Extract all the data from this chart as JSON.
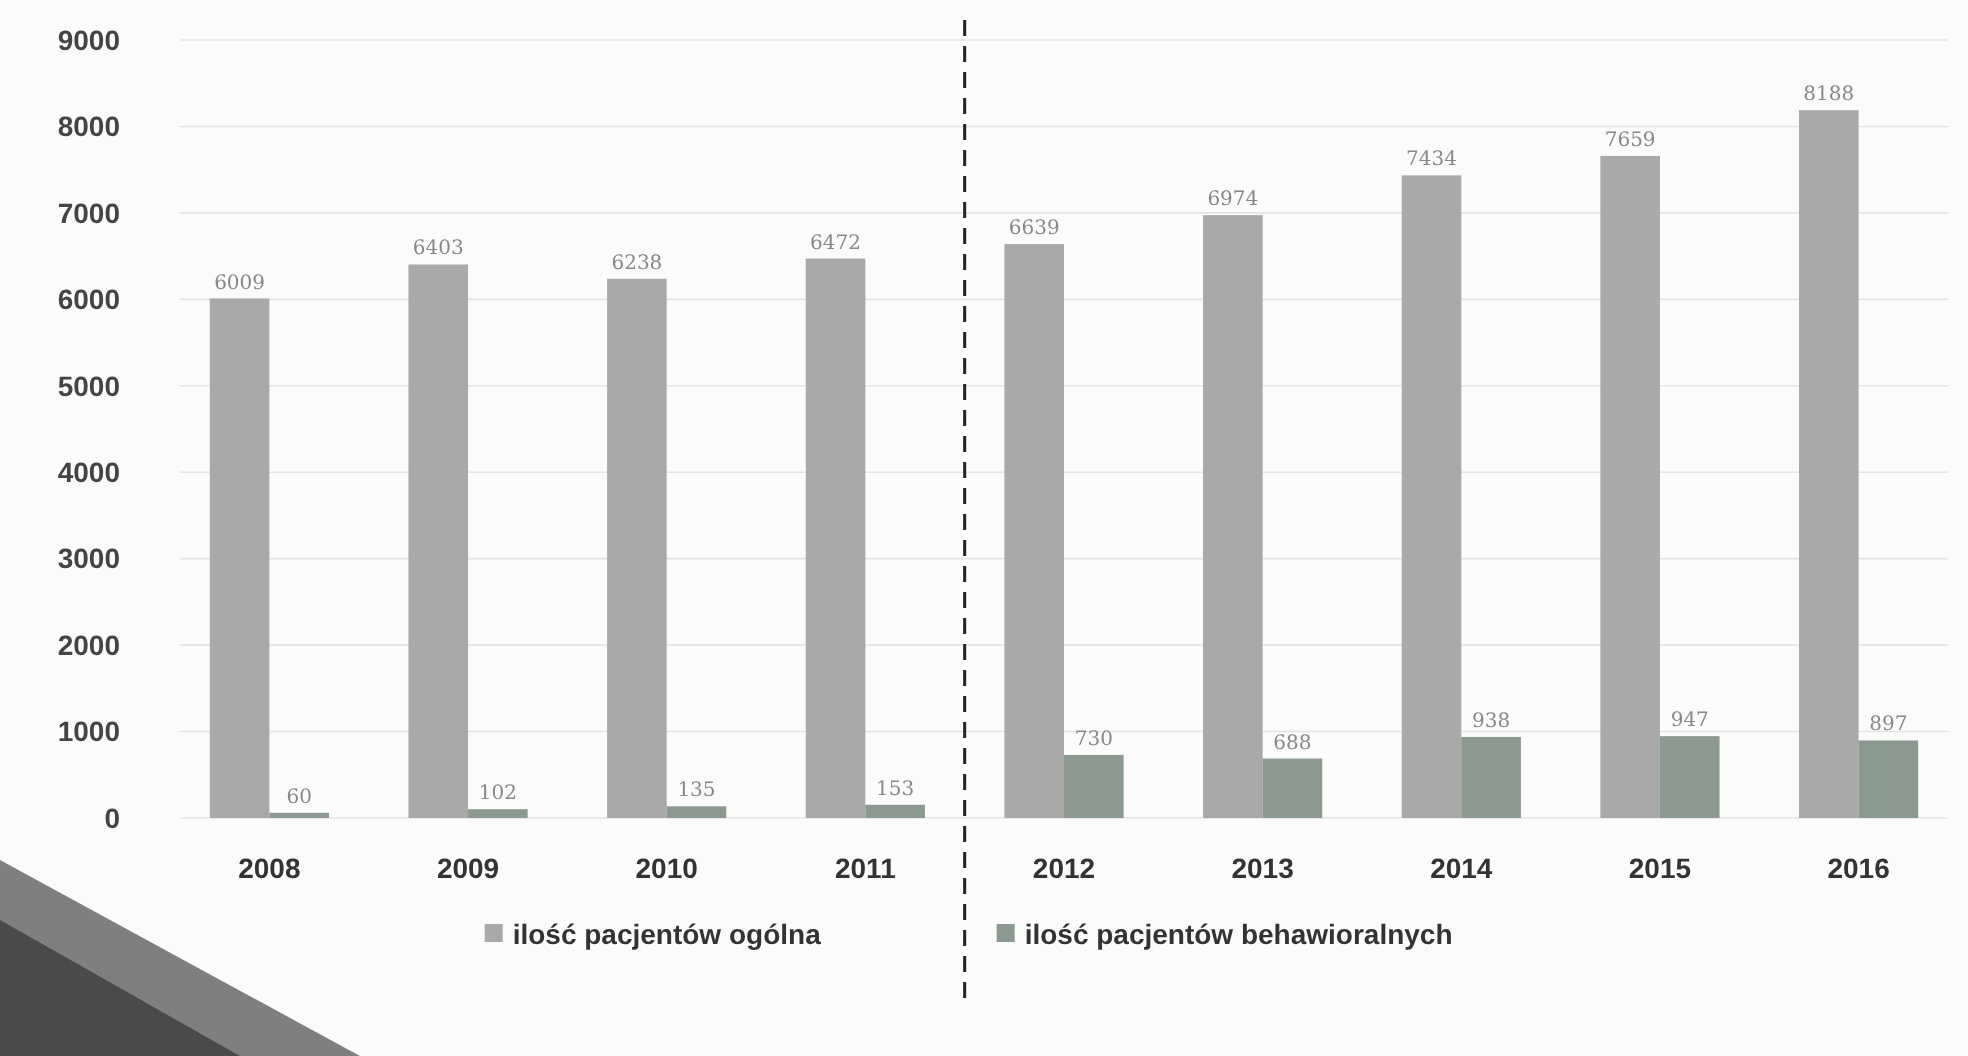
{
  "chart_data": {
    "type": "bar",
    "categories": [
      "2008",
      "2009",
      "2010",
      "2011",
      "2012",
      "2013",
      "2014",
      "2015",
      "2016"
    ],
    "series": [
      {
        "name": "ilość pacjentów ogólna",
        "color": "#a9a9a9",
        "values": [
          6009,
          6403,
          6238,
          6472,
          6639,
          6974,
          7434,
          7659,
          8188
        ]
      },
      {
        "name": "ilość pacjentów behawioralnych",
        "color": "#8c9990",
        "values": [
          60,
          102,
          135,
          153,
          730,
          688,
          938,
          947,
          897
        ]
      }
    ],
    "ylim": [
      0,
      9000
    ],
    "yticks": [
      0,
      1000,
      2000,
      3000,
      4000,
      5000,
      6000,
      7000,
      8000,
      9000
    ],
    "data_labels": true,
    "grid": "y",
    "legend": "bottom"
  }
}
